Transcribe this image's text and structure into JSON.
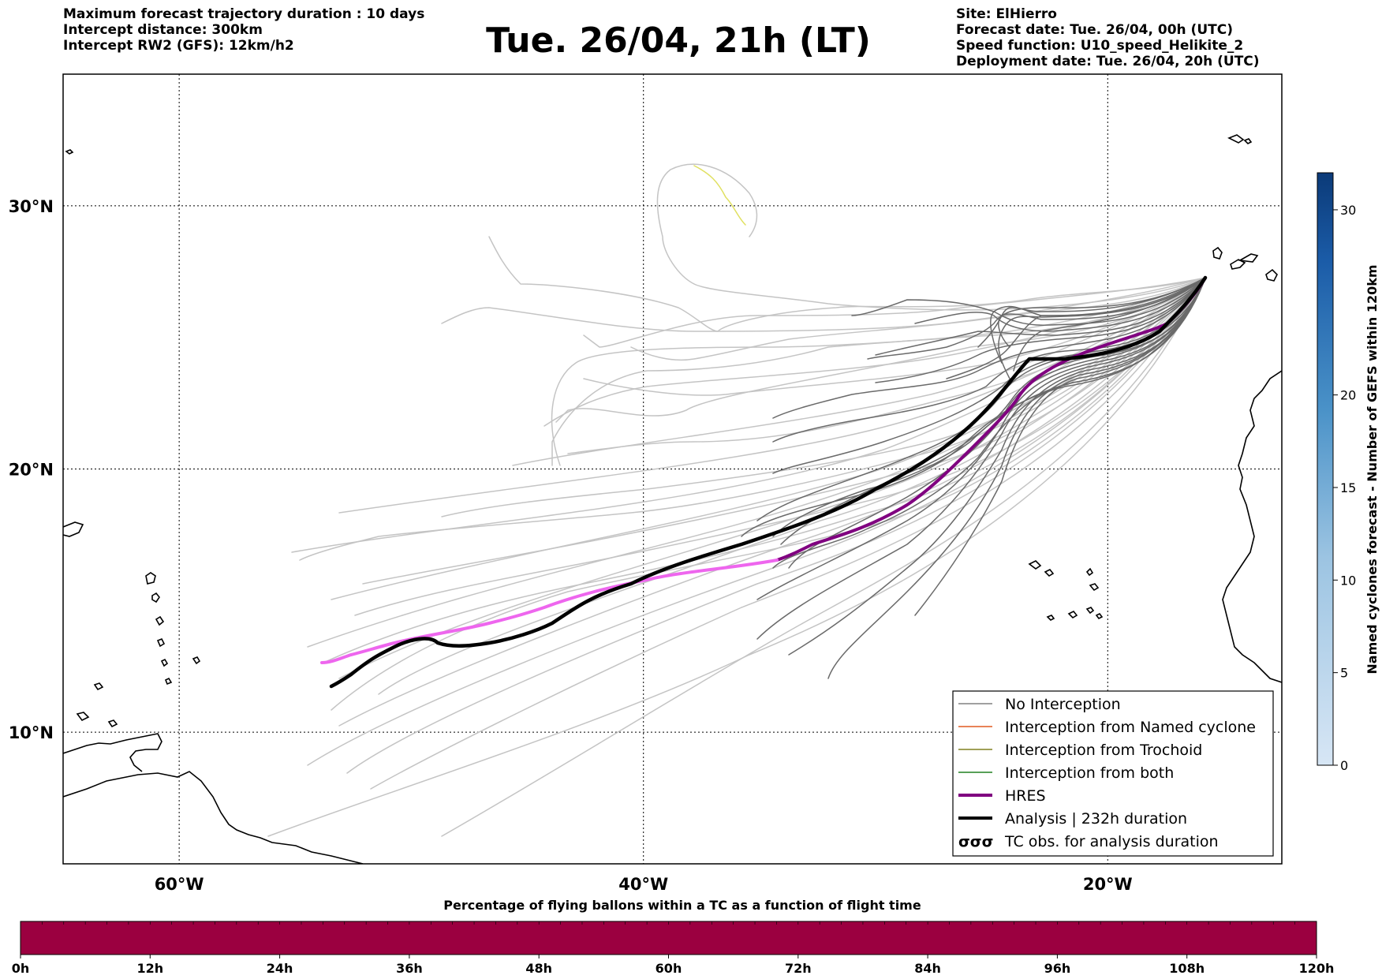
{
  "header": {
    "left": [
      "Maximum forecast trajectory duration : 10 days",
      "Intercept distance: 300km",
      "Intercept RW2 (GFS):  12km/h2"
    ],
    "title": "Tue. 26/04, 21h (LT)",
    "right": [
      "Site: ElHierro",
      "Forecast date: Tue. 26/04, 00h (UTC)",
      "Speed function: U10_speed_Helikite_2",
      "Deployment date: Tue. 26/04, 20h (UTC)"
    ]
  },
  "map": {
    "lon_range": [
      -65,
      15
    ],
    "lat_range": [
      5,
      35
    ],
    "lon_labels": [
      {
        "lon": -60,
        "label": "60°W"
      },
      {
        "lon": -40,
        "label": "40°W"
      },
      {
        "lon": -20,
        "label": "20°W"
      }
    ],
    "lat_labels": [
      {
        "lat": 30,
        "label": "30°N"
      },
      {
        "lat": 20,
        "label": "20°N"
      },
      {
        "lat": 10,
        "label": "10°N"
      }
    ]
  },
  "legend": {
    "items": [
      {
        "label": "No Interception",
        "color": "#808080",
        "kind": "thin"
      },
      {
        "label": "Interception from Named cyclone",
        "color": "#e05a20",
        "kind": "thin"
      },
      {
        "label": "Interception from Trochoid",
        "color": "#808020",
        "kind": "thin"
      },
      {
        "label": "Interception from both",
        "color": "#208020",
        "kind": "thin"
      },
      {
        "label": "HRES",
        "color": "#800080",
        "kind": "thick"
      },
      {
        "label": "Analysis | 232h duration",
        "color": "#000000",
        "kind": "thick"
      },
      {
        "label": "TC obs. for analysis duration",
        "color": "#000000",
        "kind": "symbol",
        "symbol": "ᴏᴏᴏ"
      }
    ]
  },
  "colorbar_right": {
    "label": "Named cyclones forecast - Number of GEFS within 120km",
    "ticks": [
      0,
      5,
      10,
      15,
      20,
      30
    ],
    "max": 32,
    "color_low": "#d7e6f5",
    "color_high": "#0b3a78"
  },
  "colorbar_bottom": {
    "title": "Percentage of flying ballons within a TC as a function of flight time",
    "ticks": [
      "0h",
      "12h",
      "24h",
      "36h",
      "48h",
      "60h",
      "72h",
      "84h",
      "96h",
      "108h",
      "120h"
    ],
    "color": "#9b0040"
  }
}
